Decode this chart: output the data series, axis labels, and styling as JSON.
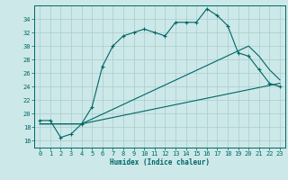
{
  "xlabel": "Humidex (Indice chaleur)",
  "bg_color": "#cce8e8",
  "grid_color": "#aacccc",
  "line_color": "#006666",
  "xlim": [
    -0.5,
    23.5
  ],
  "ylim": [
    15.0,
    36.0
  ],
  "yticks": [
    16,
    18,
    20,
    22,
    24,
    26,
    28,
    30,
    32,
    34
  ],
  "xticks": [
    0,
    1,
    2,
    3,
    4,
    5,
    6,
    7,
    8,
    9,
    10,
    11,
    12,
    13,
    14,
    15,
    16,
    17,
    18,
    19,
    20,
    21,
    22,
    23
  ],
  "series1_x": [
    0,
    1,
    2,
    3,
    4,
    5,
    6,
    7,
    8,
    9,
    10,
    11,
    12,
    13,
    14,
    15,
    16,
    17,
    18,
    19,
    20,
    21,
    22,
    23
  ],
  "series1_y": [
    19.0,
    19.0,
    16.5,
    17.0,
    18.5,
    21.0,
    27.0,
    30.0,
    31.5,
    32.0,
    32.5,
    32.0,
    31.5,
    33.5,
    33.5,
    33.5,
    35.5,
    34.5,
    33.0,
    29.0,
    28.5,
    26.5,
    24.5,
    24.0
  ],
  "series2_x": [
    0,
    4,
    20,
    21,
    22,
    23
  ],
  "series2_y": [
    18.5,
    18.5,
    30.0,
    28.5,
    26.5,
    25.0
  ],
  "series3_x": [
    0,
    4,
    23
  ],
  "series3_y": [
    18.5,
    18.5,
    24.5
  ]
}
